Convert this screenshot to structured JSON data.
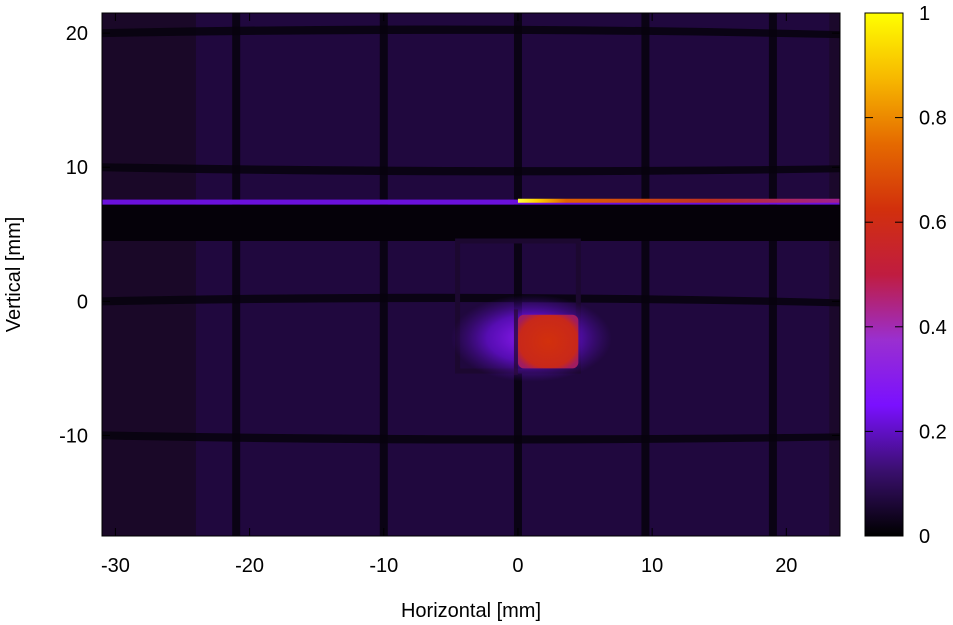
{
  "chart_data": {
    "type": "heatmap",
    "title": "",
    "xlabel": "Horizontal [mm]",
    "ylabel": "Vertical [mm]",
    "xlim": [
      -31,
      24
    ],
    "ylim": [
      -17.5,
      21.5
    ],
    "x_ticks": [
      -30,
      -20,
      -10,
      0,
      10,
      20
    ],
    "x_tick_labels": [
      "-30",
      "-20",
      "-10",
      "0",
      "10",
      "20"
    ],
    "y_ticks": [
      -10,
      0,
      10,
      20
    ],
    "y_tick_labels": [
      "-10",
      "0",
      "10",
      "20"
    ],
    "colorbar": {
      "min": 0,
      "max": 1,
      "ticks": [
        0,
        0.2,
        0.4,
        0.6,
        0.8,
        1
      ],
      "tick_labels": [
        "0",
        "0.2",
        "0.4",
        "0.6",
        "0.8",
        "1"
      ],
      "colormap": [
        "#000000",
        "#3a0f6e",
        "#7a10ff",
        "#9a2fd0",
        "#c01c40",
        "#d2300c",
        "#e56a00",
        "#f7b800",
        "#ffff00"
      ]
    },
    "grid": false,
    "features": {
      "background_level": 0.07,
      "grid_shadow_level": 0.015,
      "grid_shadow_x": [
        -21,
        -10,
        0,
        9.5,
        19
      ],
      "grid_shadow_y": [
        -10,
        0,
        10,
        20
      ],
      "horizontal_line": {
        "y": 7.4,
        "x_range": [
          -31,
          24
        ],
        "level": 0.22
      },
      "horizontal_line_bright": {
        "y": 7.5,
        "x_range": [
          0,
          24
        ],
        "level": 0.55,
        "peak_x": 0.5,
        "peak_level": 1.0
      },
      "dark_band": {
        "y_range": [
          4.5,
          7.2
        ],
        "level": 0.01
      },
      "hot_spot": {
        "x_range": [
          0,
          4.5
        ],
        "y_range": [
          -5,
          -1
        ],
        "level": 0.55
      },
      "halo": {
        "x_range": [
          -5,
          7
        ],
        "y_range": [
          -6,
          0.5
        ],
        "level": 0.25
      }
    }
  }
}
